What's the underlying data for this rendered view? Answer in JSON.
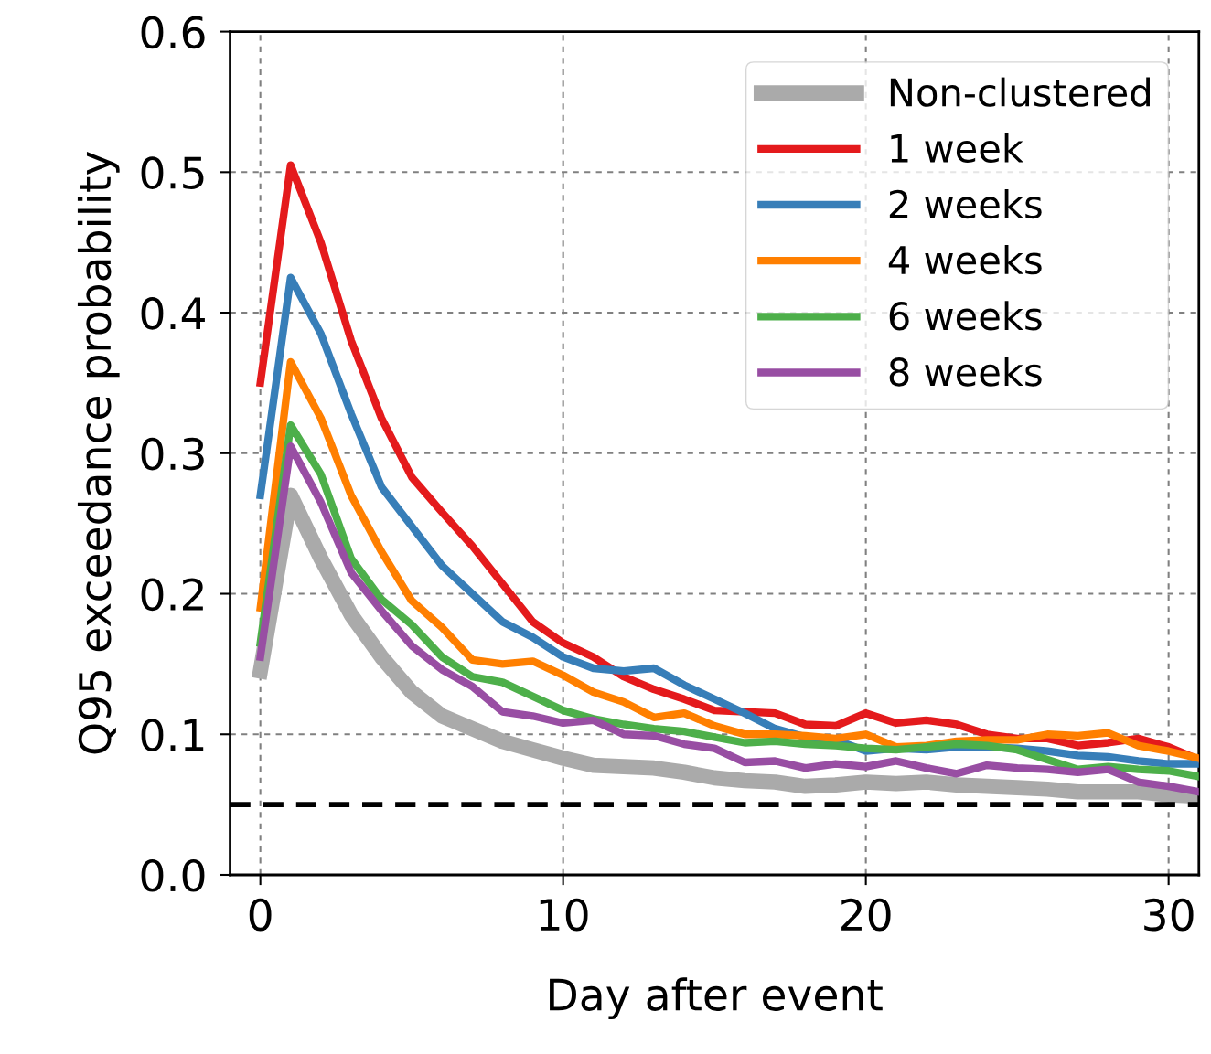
{
  "chart_data": {
    "type": "line",
    "xlabel": "Day after event",
    "ylabel": "Q95 exceedance probability",
    "x": [
      0,
      1,
      2,
      3,
      4,
      5,
      6,
      7,
      8,
      9,
      10,
      11,
      12,
      13,
      14,
      15,
      16,
      17,
      18,
      19,
      20,
      21,
      22,
      23,
      24,
      25,
      26,
      27,
      28,
      29,
      30,
      31
    ],
    "xlim": [
      -1,
      31
    ],
    "ylim": [
      0,
      0.6
    ],
    "xticks": [
      0,
      10,
      20,
      30
    ],
    "yticks": [
      {
        "value": 0,
        "label": "0.0"
      },
      0.1,
      0.2,
      0.3,
      0.4,
      0.5,
      0.6
    ],
    "grid": true,
    "legend": "top right",
    "line_style": "solid",
    "ref_lines": [
      {
        "axis": "y",
        "value": 0.05,
        "color": "#000000",
        "line_style": "dashed"
      }
    ],
    "series": [
      {
        "name": "Non-clustered",
        "color": "#aaaaaa",
        "values": [
          0.145,
          0.27,
          0.225,
          0.185,
          0.155,
          0.13,
          0.113,
          0.104,
          0.095,
          0.089,
          0.083,
          0.078,
          0.077,
          0.076,
          0.073,
          0.069,
          0.067,
          0.066,
          0.063,
          0.064,
          0.066,
          0.065,
          0.066,
          0.064,
          0.063,
          0.062,
          0.061,
          0.059,
          0.059,
          0.059,
          0.057,
          0.056
        ]
      },
      {
        "name": "1 week",
        "color": "#e41a1c",
        "values": [
          0.35,
          0.505,
          0.45,
          0.38,
          0.325,
          0.283,
          0.258,
          0.234,
          0.207,
          0.18,
          0.165,
          0.155,
          0.141,
          0.132,
          0.125,
          0.117,
          0.116,
          0.115,
          0.107,
          0.106,
          0.115,
          0.108,
          0.11,
          0.107,
          0.1,
          0.097,
          0.097,
          0.092,
          0.094,
          0.097,
          0.091,
          0.082
        ]
      },
      {
        "name": "2 weeks",
        "color": "#377eb8",
        "values": [
          0.27,
          0.425,
          0.385,
          0.328,
          0.276,
          0.248,
          0.22,
          0.2,
          0.18,
          0.169,
          0.155,
          0.147,
          0.145,
          0.147,
          0.135,
          0.125,
          0.115,
          0.104,
          0.098,
          0.096,
          0.088,
          0.09,
          0.089,
          0.091,
          0.091,
          0.09,
          0.088,
          0.085,
          0.084,
          0.081,
          0.079,
          0.079
        ]
      },
      {
        "name": "4 weeks",
        "color": "#ff7f00",
        "values": [
          0.19,
          0.365,
          0.325,
          0.27,
          0.23,
          0.195,
          0.176,
          0.153,
          0.15,
          0.152,
          0.142,
          0.13,
          0.123,
          0.112,
          0.115,
          0.106,
          0.1,
          0.1,
          0.099,
          0.097,
          0.1,
          0.091,
          0.092,
          0.095,
          0.096,
          0.096,
          0.1,
          0.099,
          0.101,
          0.092,
          0.088,
          0.083
        ]
      },
      {
        "name": "6 weeks",
        "color": "#4daf4a",
        "values": [
          0.165,
          0.32,
          0.285,
          0.225,
          0.196,
          0.178,
          0.155,
          0.141,
          0.137,
          0.127,
          0.117,
          0.111,
          0.107,
          0.104,
          0.102,
          0.098,
          0.094,
          0.095,
          0.093,
          0.092,
          0.09,
          0.089,
          0.091,
          0.093,
          0.092,
          0.089,
          0.082,
          0.075,
          0.077,
          0.075,
          0.074,
          0.07
        ]
      },
      {
        "name": "8 weeks",
        "color": "#984ea3",
        "values": [
          0.155,
          0.305,
          0.265,
          0.215,
          0.188,
          0.163,
          0.146,
          0.134,
          0.116,
          0.113,
          0.108,
          0.11,
          0.1,
          0.099,
          0.093,
          0.09,
          0.08,
          0.081,
          0.076,
          0.079,
          0.077,
          0.081,
          0.076,
          0.072,
          0.078,
          0.076,
          0.075,
          0.073,
          0.075,
          0.066,
          0.063,
          0.059
        ]
      }
    ]
  }
}
